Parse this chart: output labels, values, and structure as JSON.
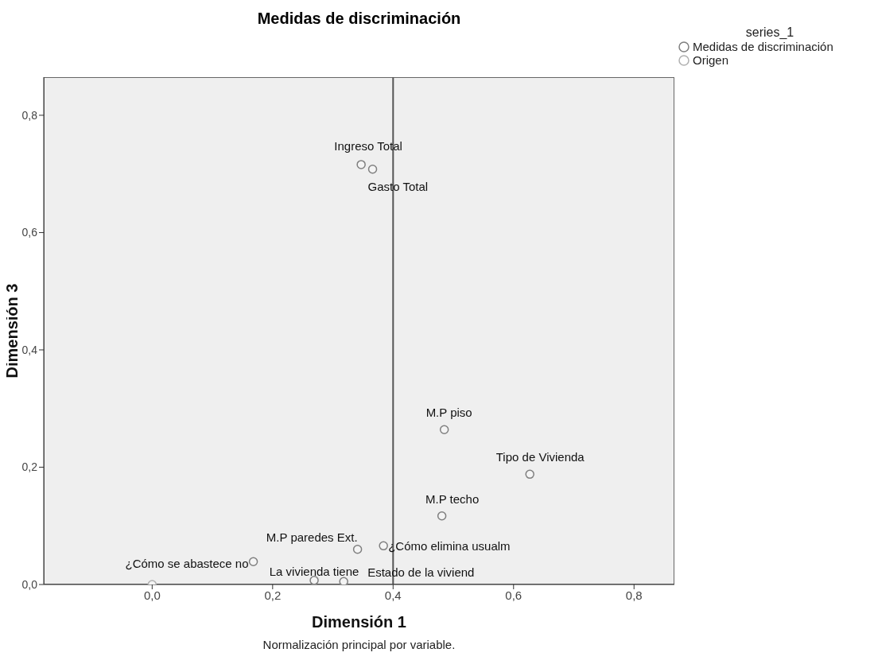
{
  "chart_data": {
    "type": "scatter",
    "title": "Medidas de discriminación",
    "xlabel": "Dimensión 1",
    "ylabel": "Dimensión 3",
    "legend_title": "series_1",
    "xlim": [
      -0.18,
      0.867
    ],
    "ylim": [
      0,
      0.865
    ],
    "xticks": [
      {
        "value": 0,
        "label": "0,0"
      },
      {
        "value": 0.2,
        "label": "0,2"
      },
      {
        "value": 0.4,
        "label": "0,4"
      },
      {
        "value": 0.6,
        "label": "0,6"
      },
      {
        "value": 0.8,
        "label": "0,8"
      }
    ],
    "yticks": [
      {
        "value": 0,
        "label": "0,0"
      },
      {
        "value": 0.2,
        "label": "0,2"
      },
      {
        "value": 0.4,
        "label": "0,4"
      },
      {
        "value": 0.6,
        "label": "0,6"
      },
      {
        "value": 0.8,
        "label": "0,8"
      }
    ],
    "series": [
      {
        "name": "Medidas de discriminación",
        "color": "#7f7f7f",
        "x": [
          0.347,
          0.366,
          0.485,
          0.627,
          0.481,
          0.341,
          0.384,
          0.168,
          0.269,
          0.318
        ],
        "values": [
          0.716,
          0.708,
          0.264,
          0.188,
          0.117,
          0.06,
          0.066,
          0.039,
          0.007,
          0.005
        ]
      },
      {
        "name": "Origen",
        "color": "#b0b0b0",
        "x": [
          0
        ],
        "values": [
          0
        ]
      }
    ],
    "ref_lines": [
      {
        "axis": "x",
        "value": 0.4,
        "color": "#555555"
      }
    ],
    "annotations": [
      {
        "text": "Ingreso Total",
        "x": 0.347,
        "y": 0.716
      },
      {
        "text": "Gasto Total",
        "x": 0.366,
        "y": 0.708
      },
      {
        "text": "M.P piso",
        "x": 0.485,
        "y": 0.264
      },
      {
        "text": "Tipo de Vivienda",
        "x": 0.627,
        "y": 0.188
      },
      {
        "text": "M.P techo",
        "x": 0.481,
        "y": 0.117
      },
      {
        "text": "M.P paredes Ext.",
        "x": 0.341,
        "y": 0.06
      },
      {
        "text": "¿Cómo elimina usualm",
        "x": 0.384,
        "y": 0.066
      },
      {
        "text": "¿Cómo se abastece no",
        "x": 0.168,
        "y": 0.039
      },
      {
        "text": "La vivienda tiene",
        "x": 0.269,
        "y": 0.007
      },
      {
        "text": "Estado de la viviend",
        "x": 0.318,
        "y": 0.005
      },
      "Normalización principal por variable."
    ],
    "marker": "circle",
    "grid": false,
    "legend": "top right"
  }
}
